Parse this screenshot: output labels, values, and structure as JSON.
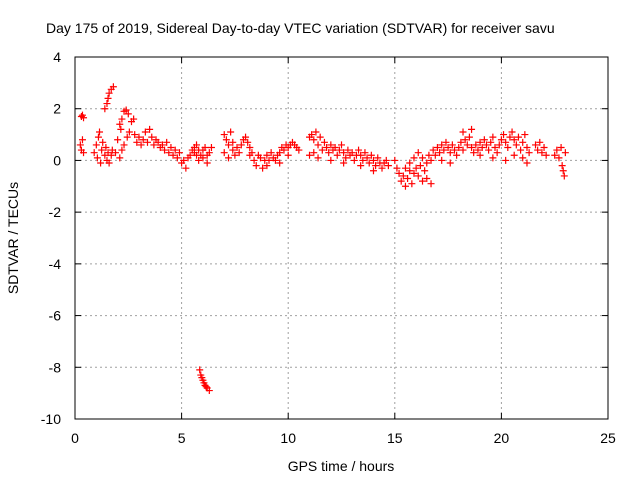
{
  "chart_data": {
    "type": "scatter",
    "title": "Day 175 of 2019, Sidereal Day-to-day VTEC variation (SDTVAR) for receiver savu",
    "xlabel": "GPS time / hours",
    "ylabel": "SDTVAR / TECUs",
    "xlim": [
      0,
      25
    ],
    "ylim": [
      -10,
      4
    ],
    "xticks": [
      0,
      5,
      10,
      15,
      20,
      25
    ],
    "yticks": [
      -10,
      -8,
      -6,
      -4,
      -2,
      0,
      2,
      4
    ],
    "xtick_labels": [
      "0",
      "5",
      "10",
      "15",
      "20",
      "25"
    ],
    "ytick_labels": [
      "-10",
      "-8",
      "-6",
      "-4",
      "-2",
      "0",
      "2",
      "4"
    ],
    "grid": true,
    "marker": "+",
    "color": "#ff0000",
    "series": [
      {
        "name": "SDTVAR",
        "points": [
          [
            0.25,
            0.6
          ],
          [
            0.3,
            0.4
          ],
          [
            0.35,
            0.8
          ],
          [
            0.4,
            0.3
          ],
          [
            0.3,
            1.7
          ],
          [
            0.4,
            1.65
          ],
          [
            0.35,
            1.75
          ],
          [
            0.9,
            0.3
          ],
          [
            1.0,
            0.6
          ],
          [
            1.05,
            0.1
          ],
          [
            1.1,
            0.9
          ],
          [
            1.15,
            1.1
          ],
          [
            1.2,
            -0.1
          ],
          [
            1.25,
            0.4
          ],
          [
            1.3,
            0.7
          ],
          [
            1.4,
            0.2
          ],
          [
            1.45,
            0.5
          ],
          [
            1.5,
            0.0
          ],
          [
            1.55,
            0.3
          ],
          [
            1.6,
            -0.1
          ],
          [
            1.7,
            0.2
          ],
          [
            1.75,
            0.4
          ],
          [
            1.4,
            2.0
          ],
          [
            1.5,
            2.2
          ],
          [
            1.55,
            2.4
          ],
          [
            1.6,
            2.6
          ],
          [
            1.7,
            2.75
          ],
          [
            1.8,
            2.85
          ],
          [
            1.9,
            0.3
          ],
          [
            2.0,
            0.8
          ],
          [
            2.1,
            1.4
          ],
          [
            2.15,
            1.2
          ],
          [
            2.2,
            1.6
          ],
          [
            2.3,
            1.9
          ],
          [
            2.4,
            1.95
          ],
          [
            2.5,
            1.8
          ],
          [
            2.1,
            0.1
          ],
          [
            2.2,
            0.4
          ],
          [
            2.3,
            0.6
          ],
          [
            2.45,
            0.9
          ],
          [
            2.55,
            1.1
          ],
          [
            2.65,
            1.5
          ],
          [
            2.75,
            1.6
          ],
          [
            2.8,
            1.0
          ],
          [
            2.9,
            0.7
          ],
          [
            3.0,
            0.9
          ],
          [
            3.1,
            0.6
          ],
          [
            3.2,
            0.8
          ],
          [
            3.3,
            1.1
          ],
          [
            3.4,
            0.7
          ],
          [
            3.5,
            1.2
          ],
          [
            3.6,
            0.9
          ],
          [
            3.7,
            0.6
          ],
          [
            3.8,
            0.8
          ],
          [
            3.9,
            0.7
          ],
          [
            4.0,
            0.5
          ],
          [
            4.1,
            0.6
          ],
          [
            4.2,
            0.4
          ],
          [
            4.3,
            0.7
          ],
          [
            4.4,
            0.3
          ],
          [
            4.5,
            0.5
          ],
          [
            4.6,
            0.2
          ],
          [
            4.7,
            0.4
          ],
          [
            4.8,
            0.1
          ],
          [
            4.9,
            0.3
          ],
          [
            5.0,
            -0.1
          ],
          [
            5.1,
            0.0
          ],
          [
            5.2,
            -0.3
          ],
          [
            5.3,
            0.1
          ],
          [
            5.4,
            0.2
          ],
          [
            5.5,
            0.4
          ],
          [
            5.6,
            0.3
          ],
          [
            5.7,
            0.2
          ],
          [
            5.8,
            0.0
          ],
          [
            5.9,
            0.2
          ],
          [
            6.0,
            0.4
          ],
          [
            6.1,
            0.5
          ],
          [
            6.2,
            0.2
          ],
          [
            6.3,
            0.3
          ],
          [
            6.4,
            0.5
          ],
          [
            5.6,
            0.5
          ],
          [
            5.7,
            0.6
          ],
          [
            5.8,
            0.4
          ],
          [
            6.0,
            0.1
          ],
          [
            6.2,
            -0.1
          ],
          [
            5.85,
            -8.1
          ],
          [
            5.9,
            -8.3
          ],
          [
            5.95,
            -8.4
          ],
          [
            6.0,
            -8.5
          ],
          [
            6.05,
            -8.6
          ],
          [
            6.1,
            -8.7
          ],
          [
            6.15,
            -8.75
          ],
          [
            6.2,
            -8.8
          ],
          [
            6.3,
            -8.9
          ],
          [
            7.0,
            1.0
          ],
          [
            7.1,
            0.8
          ],
          [
            7.2,
            0.6
          ],
          [
            7.3,
            1.1
          ],
          [
            7.4,
            0.4
          ],
          [
            7.5,
            0.2
          ],
          [
            7.6,
            0.5
          ],
          [
            7.7,
            0.3
          ],
          [
            7.8,
            0.6
          ],
          [
            7.9,
            0.8
          ],
          [
            8.0,
            0.9
          ],
          [
            8.1,
            0.7
          ],
          [
            8.2,
            0.5
          ],
          [
            8.3,
            0.3
          ],
          [
            8.4,
            0.0
          ],
          [
            8.5,
            -0.2
          ],
          [
            8.6,
            0.2
          ],
          [
            8.7,
            0.1
          ],
          [
            8.8,
            -0.3
          ],
          [
            8.9,
            0.0
          ],
          [
            9.0,
            0.2
          ],
          [
            9.1,
            0.0
          ],
          [
            9.2,
            0.3
          ],
          [
            9.3,
            0.1
          ],
          [
            9.4,
            0.0
          ],
          [
            9.5,
            0.2
          ],
          [
            9.6,
            0.3
          ],
          [
            9.7,
            0.5
          ],
          [
            9.8,
            0.4
          ],
          [
            9.9,
            0.6
          ],
          [
            10.0,
            0.5
          ],
          [
            10.1,
            0.6
          ],
          [
            10.2,
            0.7
          ],
          [
            10.3,
            0.6
          ],
          [
            10.4,
            0.5
          ],
          [
            10.5,
            0.4
          ],
          [
            7.0,
            0.3
          ],
          [
            7.2,
            0.1
          ],
          [
            7.4,
            0.7
          ],
          [
            8.2,
            0.2
          ],
          [
            9.0,
            -0.2
          ],
          [
            9.6,
            -0.1
          ],
          [
            10.0,
            0.2
          ],
          [
            11.0,
            0.9
          ],
          [
            11.1,
            1.0
          ],
          [
            11.2,
            0.8
          ],
          [
            11.3,
            1.1
          ],
          [
            11.4,
            0.6
          ],
          [
            11.5,
            0.9
          ],
          [
            11.6,
            0.4
          ],
          [
            11.7,
            0.7
          ],
          [
            11.8,
            0.5
          ],
          [
            11.9,
            0.3
          ],
          [
            12.0,
            0.6
          ],
          [
            12.1,
            0.4
          ],
          [
            12.2,
            0.5
          ],
          [
            12.3,
            0.2
          ],
          [
            12.4,
            0.4
          ],
          [
            12.5,
            0.6
          ],
          [
            12.6,
            0.3
          ],
          [
            12.7,
            0.1
          ],
          [
            12.8,
            0.4
          ],
          [
            12.9,
            0.2
          ],
          [
            13.0,
            0.3
          ],
          [
            13.1,
            0.0
          ],
          [
            13.2,
            0.2
          ],
          [
            13.3,
            0.4
          ],
          [
            13.4,
            0.2
          ],
          [
            13.5,
            0.0
          ],
          [
            13.6,
            0.3
          ],
          [
            13.7,
            0.1
          ],
          [
            13.8,
            -0.1
          ],
          [
            13.9,
            0.2
          ],
          [
            14.0,
            0.0
          ],
          [
            14.1,
            -0.2
          ],
          [
            14.2,
            0.1
          ],
          [
            14.3,
            -0.1
          ],
          [
            14.4,
            -0.3
          ],
          [
            14.5,
            -0.1
          ],
          [
            14.6,
            0.0
          ],
          [
            14.7,
            -0.2
          ],
          [
            11.0,
            0.2
          ],
          [
            11.2,
            0.3
          ],
          [
            11.4,
            0.1
          ],
          [
            12.0,
            0.0
          ],
          [
            12.6,
            -0.1
          ],
          [
            13.4,
            -0.2
          ],
          [
            14.0,
            -0.4
          ],
          [
            15.0,
            0.0
          ],
          [
            15.1,
            -0.3
          ],
          [
            15.2,
            -0.5
          ],
          [
            15.3,
            -0.8
          ],
          [
            15.4,
            -0.6
          ],
          [
            15.5,
            -1.0
          ],
          [
            15.6,
            -0.7
          ],
          [
            15.7,
            -0.4
          ],
          [
            15.8,
            -0.9
          ],
          [
            15.9,
            -0.5
          ],
          [
            16.0,
            -0.3
          ],
          [
            16.1,
            -0.6
          ],
          [
            16.2,
            -0.2
          ],
          [
            16.3,
            0.1
          ],
          [
            16.4,
            -0.4
          ],
          [
            16.5,
            -0.1
          ],
          [
            16.6,
            0.2
          ],
          [
            16.7,
            0.0
          ],
          [
            16.8,
            0.4
          ],
          [
            16.9,
            0.2
          ],
          [
            17.0,
            0.5
          ],
          [
            15.5,
            -0.3
          ],
          [
            15.7,
            -0.1
          ],
          [
            15.9,
            0.1
          ],
          [
            16.1,
            0.3
          ],
          [
            16.3,
            -0.8
          ],
          [
            16.5,
            -0.7
          ],
          [
            16.7,
            -0.9
          ],
          [
            17.1,
            0.3
          ],
          [
            17.2,
            0.6
          ],
          [
            17.3,
            0.4
          ],
          [
            17.4,
            0.7
          ],
          [
            17.5,
            0.5
          ],
          [
            17.6,
            0.3
          ],
          [
            17.7,
            0.6
          ],
          [
            17.8,
            0.4
          ],
          [
            17.9,
            0.2
          ],
          [
            18.0,
            0.5
          ],
          [
            18.1,
            0.7
          ],
          [
            18.2,
            0.4
          ],
          [
            18.3,
            0.8
          ],
          [
            18.4,
            0.6
          ],
          [
            18.5,
            0.9
          ],
          [
            18.6,
            0.5
          ],
          [
            18.7,
            0.3
          ],
          [
            18.8,
            0.6
          ],
          [
            18.9,
            0.4
          ],
          [
            19.0,
            0.7
          ],
          [
            19.1,
            0.5
          ],
          [
            19.2,
            0.8
          ],
          [
            19.3,
            0.6
          ],
          [
            19.4,
            0.4
          ],
          [
            19.5,
            0.7
          ],
          [
            19.6,
            0.9
          ],
          [
            19.7,
            0.5
          ],
          [
            19.8,
            0.3
          ],
          [
            19.9,
            0.6
          ],
          [
            20.0,
            0.8
          ],
          [
            20.1,
            1.0
          ],
          [
            20.2,
            0.7
          ],
          [
            20.3,
            0.5
          ],
          [
            20.4,
            0.9
          ],
          [
            20.5,
            1.1
          ],
          [
            20.6,
            0.8
          ],
          [
            20.7,
            0.6
          ],
          [
            20.8,
            0.9
          ],
          [
            20.9,
            0.4
          ],
          [
            21.0,
            0.7
          ],
          [
            21.1,
            1.0
          ],
          [
            21.2,
            0.5
          ],
          [
            21.3,
            0.3
          ],
          [
            17.2,
            0.0
          ],
          [
            17.6,
            -0.1
          ],
          [
            18.2,
            1.1
          ],
          [
            18.6,
            1.2
          ],
          [
            19.0,
            0.2
          ],
          [
            19.6,
            0.1
          ],
          [
            20.2,
            0.0
          ],
          [
            20.6,
            0.2
          ],
          [
            21.0,
            0.1
          ],
          [
            21.2,
            -0.1
          ],
          [
            21.6,
            0.6
          ],
          [
            21.7,
            0.4
          ],
          [
            21.8,
            0.7
          ],
          [
            21.9,
            0.3
          ],
          [
            22.0,
            0.5
          ],
          [
            22.1,
            0.2
          ],
          [
            22.5,
            0.2
          ],
          [
            22.6,
            0.4
          ],
          [
            22.7,
            0.1
          ],
          [
            22.8,
            0.5
          ],
          [
            22.85,
            -0.2
          ],
          [
            22.9,
            -0.4
          ],
          [
            22.95,
            -0.6
          ],
          [
            23.0,
            0.3
          ]
        ]
      }
    ]
  }
}
